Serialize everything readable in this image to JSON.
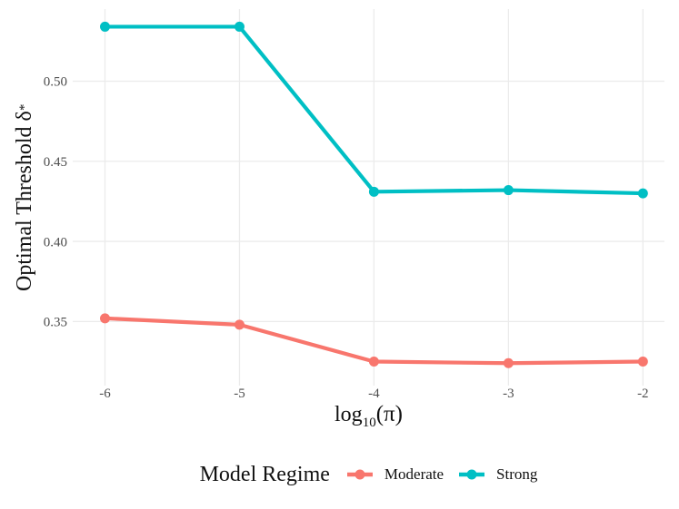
{
  "chart_data": {
    "type": "line",
    "title": "",
    "xlabel": "log10(π)",
    "ylabel": "Optimal Threshold δ*",
    "x": [
      -6,
      -5,
      -4,
      -3,
      -2
    ],
    "series": [
      {
        "name": "Moderate",
        "color": "#F8766D",
        "values": [
          0.352,
          0.348,
          0.325,
          0.324,
          0.325
        ]
      },
      {
        "name": "Strong",
        "color": "#00BFC4",
        "values": [
          0.534,
          0.534,
          0.431,
          0.432,
          0.43
        ]
      }
    ],
    "xticks": [
      -6,
      -5,
      -4,
      -3,
      -2
    ],
    "xtick_labels": [
      "-6",
      "-5",
      "-4",
      "-3",
      "-2"
    ],
    "yticks": [
      0.35,
      0.4,
      0.45,
      0.5
    ],
    "ytick_labels": [
      "0.35",
      "0.40",
      "0.45",
      "0.50"
    ],
    "xlim": [
      -6.24,
      -1.84
    ],
    "ylim": [
      0.31,
      0.545
    ],
    "grid": "major-only",
    "gridline_color": "#EBEBEB",
    "background": "#FFFFFF",
    "legend_position": "bottom",
    "legend_title": "Model Regime",
    "tick_label_color": "#4D4D4D"
  },
  "axes": {
    "xlabel_prefix": "log",
    "xlabel_sub": "10",
    "xlabel_rest": "(π)",
    "ylabel_main": "Optimal Threshold δ",
    "ylabel_sup": "*"
  },
  "legend": {
    "title": "Model Regime",
    "items": [
      {
        "label": "Moderate",
        "color": "#F8766D"
      },
      {
        "label": "Strong",
        "color": "#00BFC4"
      }
    ]
  }
}
